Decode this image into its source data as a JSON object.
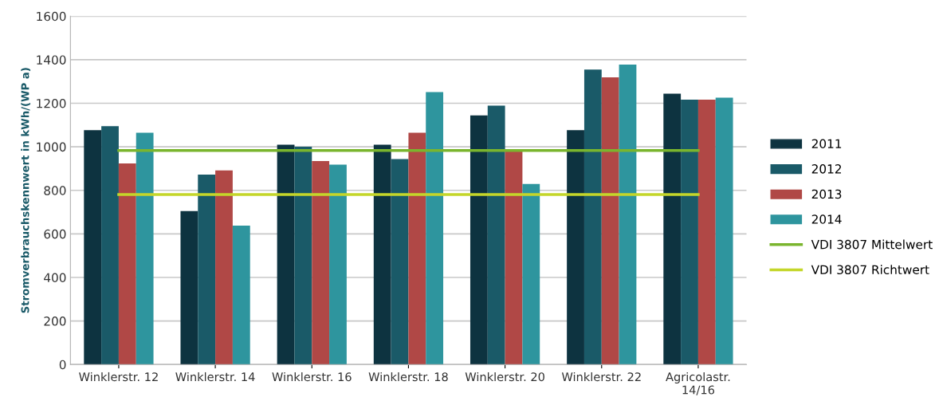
{
  "chart_data": {
    "type": "bar",
    "ylabel": "Stromverbrauchskennwert in kWh/(WP a)",
    "categories": [
      "Winklerstr. 12",
      "Winklerstr. 14",
      "Winklerstr. 16",
      "Winklerstr. 18",
      "Winklerstr. 20",
      "Winklerstr. 22",
      "Agricolastr.\n14/16"
    ],
    "series": [
      {
        "name": "2011",
        "color": "#0d3340",
        "values": [
          1077,
          705,
          1010,
          1010,
          1144,
          1077,
          1244
        ]
      },
      {
        "name": "2012",
        "color": "#1a5a68",
        "values": [
          1095,
          872,
          1001,
          944,
          1189,
          1355,
          1217
        ]
      },
      {
        "name": "2013",
        "color": "#b04846",
        "values": [
          924,
          892,
          935,
          1065,
          983,
          1319,
          1217
        ]
      },
      {
        "name": "2014",
        "color": "#2e959e",
        "values": [
          1065,
          638,
          918,
          1251,
          829,
          1378,
          1226
        ]
      },
      {
        "name": "VDI 3807 Mittelwert",
        "type": "line",
        "color": "#7ab52e",
        "values": [
          983,
          983,
          983,
          983,
          983,
          983,
          983
        ]
      },
      {
        "name": "VDI 3807 Richtwert",
        "type": "line",
        "color": "#c4d62a",
        "values": [
          781,
          781,
          781,
          781,
          781,
          781,
          781
        ]
      }
    ],
    "ylim": [
      0,
      1600
    ],
    "yticks": [
      0,
      200,
      400,
      600,
      800,
      1000,
      1200,
      1400,
      1600
    ],
    "grid": "y",
    "legend": "right",
    "marker": "none",
    "line_style": "solid"
  }
}
